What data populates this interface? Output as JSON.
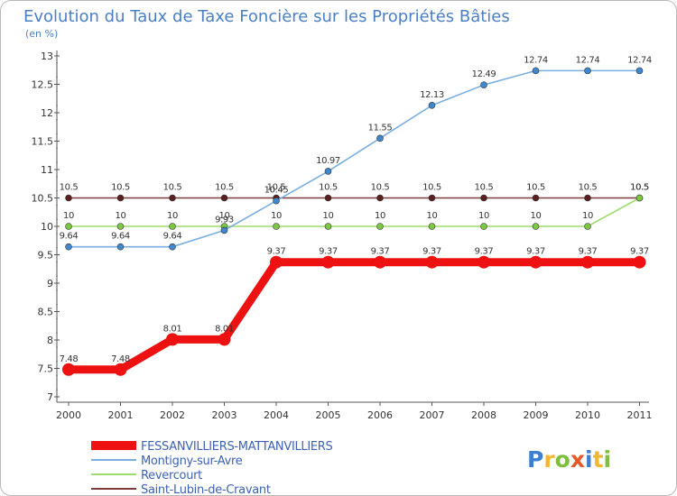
{
  "header": {
    "title": "Evolution du Taux de Taxe Foncière sur les Propriétés Bâties",
    "subtitle": "(en %)"
  },
  "logo": {
    "letters": [
      "P",
      "r",
      "o",
      "x",
      "i",
      "t",
      "i"
    ],
    "colors": [
      "#3d7fd1",
      "#f2b632",
      "#7fbf3f",
      "#e25a28",
      "#3d7fd1",
      "#f2b632",
      "#7fbf3f"
    ]
  },
  "chart_data": {
    "type": "line",
    "title": "Evolution du Taux de Taxe Foncière sur les Propriétés Bâties",
    "ylabel": "(en %)",
    "xlabel": "",
    "ylim": [
      7,
      13
    ],
    "yticks": [
      7,
      7.5,
      8,
      8.5,
      9,
      9.5,
      10,
      10.5,
      11,
      11.5,
      12,
      12.5,
      13
    ],
    "ytick_labels": [
      "7",
      "7.5",
      "8",
      "8.5",
      "9",
      "9.5",
      "10",
      "10.5",
      "11",
      "11.5",
      "12",
      "12.5",
      "13"
    ],
    "grid": false,
    "legend": "bottom-left",
    "categories": [
      "2000",
      "2001",
      "2002",
      "2003",
      "2004",
      "2005",
      "2006",
      "2007",
      "2008",
      "2009",
      "2010",
      "2011"
    ],
    "series": [
      {
        "name": "Saint-Lubin-de-Cravant",
        "color": "#7a3b3b",
        "marker": "#5a1f1f",
        "style": "thin",
        "values": [
          10.5,
          10.5,
          10.5,
          10.5,
          10.5,
          10.5,
          10.5,
          10.5,
          10.5,
          10.5,
          10.5,
          10.5
        ],
        "labels": [
          "10.5",
          "10.5",
          "10.5",
          "10.5",
          "10.5",
          "10.5",
          "10.5",
          "10.5",
          "10.5",
          "10.5",
          "10.5",
          "10.5"
        ]
      },
      {
        "name": "Revercourt",
        "color": "#9fdc6e",
        "marker": "#7cc842",
        "style": "thin",
        "values": [
          10,
          10,
          10,
          10,
          10,
          10,
          10,
          10,
          10,
          10,
          10,
          10.5
        ],
        "labels": [
          "10",
          "10",
          "10",
          "10",
          "10",
          "10",
          "10",
          "10",
          "10",
          "10",
          "10",
          "10.5"
        ]
      },
      {
        "name": "Montigny-sur-Avre",
        "color": "#7aaee0",
        "marker": "#3f87cf",
        "style": "thin",
        "values": [
          9.64,
          9.64,
          9.64,
          9.93,
          10.45,
          10.97,
          11.55,
          12.13,
          12.49,
          12.74,
          12.74,
          12.74
        ],
        "labels": [
          "9.64",
          "9.64",
          "9.64",
          "9.93",
          "10.45",
          "10.97",
          "11.55",
          "12.13",
          "12.49",
          "12.74",
          "12.74",
          "12.74"
        ]
      },
      {
        "name": "FESSANVILLIERS-MATTANVILLIERS",
        "color": "#ee1111",
        "marker": "#ee1111",
        "style": "thick",
        "values": [
          7.48,
          7.48,
          8.01,
          8.01,
          9.37,
          9.37,
          9.37,
          9.37,
          9.37,
          9.37,
          9.37,
          9.37
        ],
        "labels": [
          "7.48",
          "7.48",
          "8.01",
          "8.01",
          "9.37",
          "9.37",
          "9.37",
          "9.37",
          "9.37",
          "9.37",
          "9.37",
          "9.37"
        ]
      }
    ],
    "legend_entries": [
      "FESSANVILLIERS-MATTANVILLIERS",
      "Montigny-sur-Avre",
      "Revercourt",
      "Saint-Lubin-de-Cravant"
    ]
  }
}
